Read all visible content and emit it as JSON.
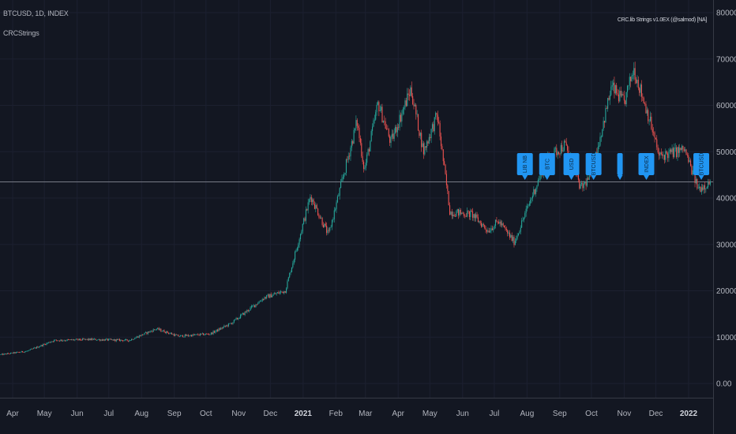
{
  "header": {
    "symbol_line": "BTCUSD, 1D, INDEX",
    "indicator_name": "CRCStrings",
    "top_right_label": "CRC.lib Strings v1.0EX (@salmod) [NA]"
  },
  "colors": {
    "background": "#131722",
    "up": "#26a69a",
    "down": "#ef5350",
    "label": "#2196f3",
    "hline": "#787b86",
    "axis_text": "#b2b5be"
  },
  "chart_data": {
    "type": "candlestick",
    "title": "",
    "x_ticks": [
      "Apr",
      "May",
      "Jun",
      "Jul",
      "Aug",
      "Sep",
      "Oct",
      "Nov",
      "Dec",
      "2021",
      "Feb",
      "Mar",
      "Apr",
      "May",
      "Jun",
      "Jul",
      "Aug",
      "Sep",
      "Oct",
      "Nov",
      "Dec",
      "2022"
    ],
    "x_ticks_bold": [
      "2021",
      "2022"
    ],
    "y_ticks": [
      "0.00",
      "10000.00",
      "20000.00",
      "30000.00",
      "40000.00",
      "50000.00",
      "60000.00",
      "70000.00",
      "80000.00"
    ],
    "ylim": [
      0,
      80000
    ],
    "horizontal_line": 43500,
    "price_anchors": [
      {
        "date": "2020-03-20",
        "price": 6200
      },
      {
        "date": "2020-04-15",
        "price": 7000
      },
      {
        "date": "2020-05-10",
        "price": 9300
      },
      {
        "date": "2020-06-15",
        "price": 9500
      },
      {
        "date": "2020-07-20",
        "price": 9300
      },
      {
        "date": "2020-08-15",
        "price": 11800
      },
      {
        "date": "2020-09-05",
        "price": 10200
      },
      {
        "date": "2020-10-05",
        "price": 10700
      },
      {
        "date": "2020-10-25",
        "price": 13000
      },
      {
        "date": "2020-11-25",
        "price": 18500
      },
      {
        "date": "2020-12-15",
        "price": 20000
      },
      {
        "date": "2021-01-08",
        "price": 40500
      },
      {
        "date": "2021-01-25",
        "price": 32000
      },
      {
        "date": "2021-02-10",
        "price": 46500
      },
      {
        "date": "2021-02-21",
        "price": 56500
      },
      {
        "date": "2021-02-28",
        "price": 46000
      },
      {
        "date": "2021-03-13",
        "price": 60500
      },
      {
        "date": "2021-03-25",
        "price": 52000
      },
      {
        "date": "2021-04-13",
        "price": 63500
      },
      {
        "date": "2021-04-25",
        "price": 50000
      },
      {
        "date": "2021-05-08",
        "price": 58000
      },
      {
        "date": "2021-05-20",
        "price": 37000
      },
      {
        "date": "2021-06-10",
        "price": 36500
      },
      {
        "date": "2021-06-25",
        "price": 33000
      },
      {
        "date": "2021-07-05",
        "price": 35000
      },
      {
        "date": "2021-07-20",
        "price": 30500
      },
      {
        "date": "2021-08-05",
        "price": 40000
      },
      {
        "date": "2021-08-20",
        "price": 48500
      },
      {
        "date": "2021-09-06",
        "price": 51500
      },
      {
        "date": "2021-09-21",
        "price": 42000
      },
      {
        "date": "2021-10-01",
        "price": 45000
      },
      {
        "date": "2021-10-20",
        "price": 64000
      },
      {
        "date": "2021-11-01",
        "price": 60500
      },
      {
        "date": "2021-11-10",
        "price": 68000
      },
      {
        "date": "2021-11-25",
        "price": 57000
      },
      {
        "date": "2021-12-04",
        "price": 49000
      },
      {
        "date": "2021-12-28",
        "price": 50500
      },
      {
        "date": "2022-01-10",
        "price": 42000
      },
      {
        "date": "2022-01-22",
        "price": 43500
      }
    ],
    "labels": [
      {
        "text": "LIB NB",
        "date": "2021-07-30"
      },
      {
        "text": "BTC",
        "date": "2021-08-20"
      },
      {
        "text": "USD",
        "date": "2021-09-12"
      },
      {
        "text": "BTCUSD",
        "date": "2021-10-03"
      },
      {
        "text": "",
        "date": "2021-10-28"
      },
      {
        "text": "INDEX",
        "date": "2021-11-22"
      },
      {
        "text": "BTCUSD",
        "date": "2022-01-13"
      }
    ]
  }
}
